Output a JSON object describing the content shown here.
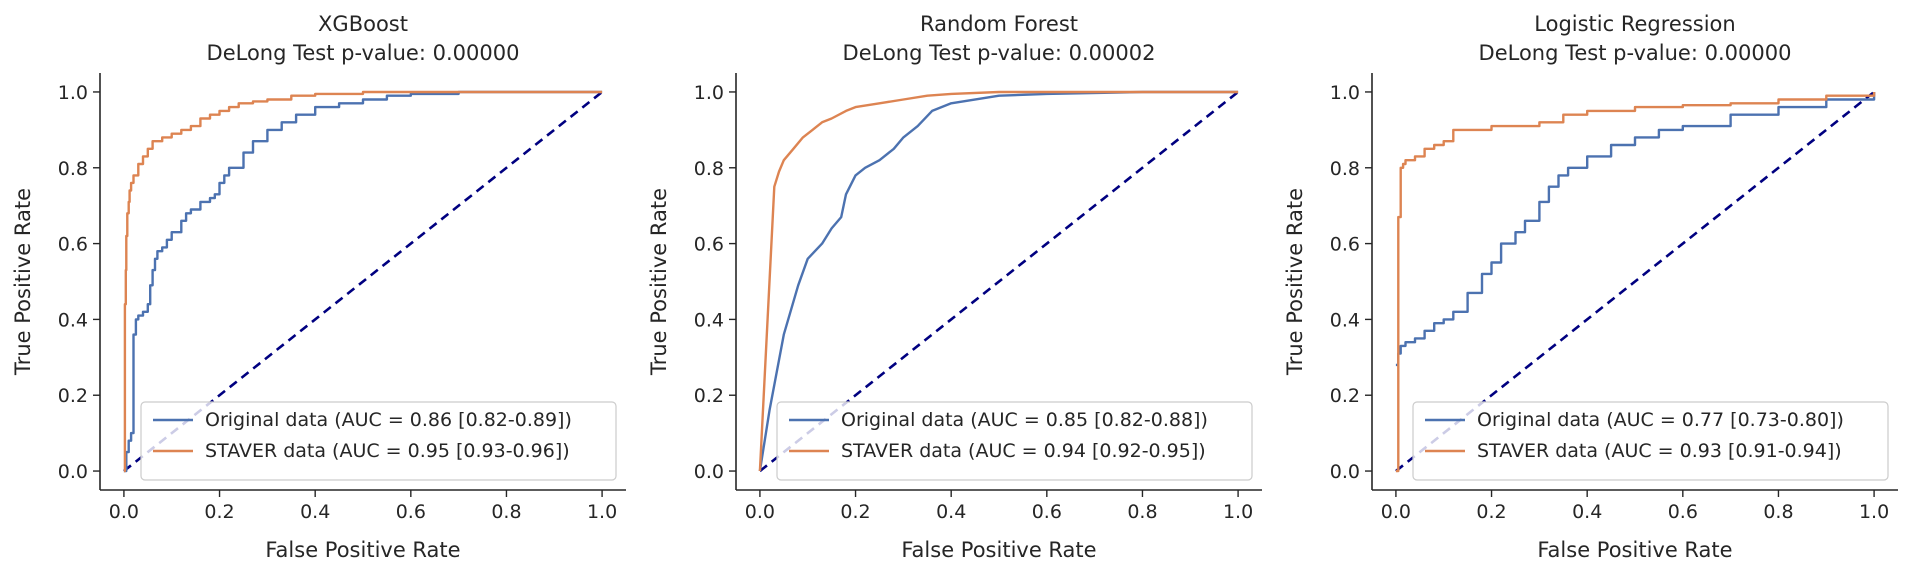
{
  "colors": {
    "original": "#4c72b0",
    "staver": "#dd8452",
    "diagonal": "#000080",
    "axes": "#262626",
    "legend_border": "#cccccc"
  },
  "chart_data": [
    {
      "type": "line",
      "title": "XGBoost",
      "subtitle": "DeLong Test p-value: 0.00000",
      "xlabel": "False Positive Rate",
      "ylabel": "True Positive Rate",
      "xlim": [
        -0.05,
        1.05
      ],
      "ylim": [
        -0.05,
        1.05
      ],
      "xticks": [
        "0.0",
        "0.2",
        "0.4",
        "0.6",
        "0.8",
        "1.0"
      ],
      "yticks": [
        "0.0",
        "0.2",
        "0.4",
        "0.6",
        "0.8",
        "1.0"
      ],
      "grid": false,
      "legend_position": "lower-right",
      "series": [
        {
          "name": "Original data (AUC = 0.86 [0.82-0.89])",
          "x": [
            0,
            0.005,
            0.01,
            0.015,
            0.02,
            0.02,
            0.025,
            0.025,
            0.03,
            0.04,
            0.05,
            0.055,
            0.06,
            0.065,
            0.07,
            0.08,
            0.09,
            0.1,
            0.12,
            0.13,
            0.14,
            0.16,
            0.18,
            0.19,
            0.2,
            0.21,
            0.22,
            0.25,
            0.27,
            0.3,
            0.33,
            0.36,
            0.4,
            0.45,
            0.5,
            0.55,
            0.6,
            0.7,
            0.8,
            1.0
          ],
          "y": [
            0,
            0.05,
            0.08,
            0.1,
            0.1,
            0.36,
            0.38,
            0.4,
            0.41,
            0.42,
            0.44,
            0.49,
            0.53,
            0.56,
            0.58,
            0.59,
            0.61,
            0.63,
            0.66,
            0.68,
            0.69,
            0.71,
            0.72,
            0.73,
            0.76,
            0.78,
            0.8,
            0.84,
            0.87,
            0.9,
            0.92,
            0.94,
            0.96,
            0.97,
            0.98,
            0.99,
            0.995,
            1.0,
            1.0,
            1.0
          ]
        },
        {
          "name": "STAVER data (AUC = 0.95 [0.93-0.96])",
          "x": [
            0,
            0.002,
            0.004,
            0.005,
            0.007,
            0.01,
            0.012,
            0.015,
            0.02,
            0.03,
            0.04,
            0.05,
            0.06,
            0.08,
            0.1,
            0.12,
            0.14,
            0.16,
            0.18,
            0.2,
            0.22,
            0.24,
            0.27,
            0.3,
            0.35,
            0.4,
            0.5,
            0.6,
            0.7,
            1.0
          ],
          "y": [
            0,
            0.44,
            0.53,
            0.62,
            0.68,
            0.71,
            0.74,
            0.76,
            0.78,
            0.81,
            0.83,
            0.85,
            0.87,
            0.88,
            0.89,
            0.9,
            0.91,
            0.93,
            0.94,
            0.95,
            0.96,
            0.97,
            0.975,
            0.98,
            0.99,
            0.995,
            1.0,
            1.0,
            1.0,
            1.0
          ]
        },
        {
          "x": [
            0,
            1
          ],
          "y": [
            0,
            1
          ]
        }
      ]
    },
    {
      "type": "line",
      "title": "Random Forest",
      "subtitle": "DeLong Test p-value: 0.00002",
      "xlabel": "False Positive Rate",
      "ylabel": "True Positive Rate",
      "xlim": [
        -0.05,
        1.05
      ],
      "ylim": [
        -0.05,
        1.05
      ],
      "xticks": [
        "0.0",
        "0.2",
        "0.4",
        "0.6",
        "0.8",
        "1.0"
      ],
      "yticks": [
        "0.0",
        "0.2",
        "0.4",
        "0.6",
        "0.8",
        "1.0"
      ],
      "grid": false,
      "legend_position": "lower-right",
      "series": [
        {
          "name": "Original data (AUC = 0.85 [0.82-0.88])",
          "x": [
            0,
            0.02,
            0.05,
            0.08,
            0.1,
            0.13,
            0.15,
            0.17,
            0.18,
            0.2,
            0.22,
            0.25,
            0.28,
            0.3,
            0.33,
            0.36,
            0.4,
            0.5,
            0.6,
            0.8,
            1.0
          ],
          "y": [
            0,
            0.16,
            0.36,
            0.49,
            0.56,
            0.6,
            0.64,
            0.67,
            0.73,
            0.78,
            0.8,
            0.82,
            0.85,
            0.88,
            0.91,
            0.95,
            0.97,
            0.99,
            0.995,
            1.0,
            1.0
          ],
          "smooth": true
        },
        {
          "name": "STAVER data (AUC = 0.94 [0.92-0.95])",
          "x": [
            0,
            0.03,
            0.04,
            0.05,
            0.07,
            0.09,
            0.11,
            0.13,
            0.15,
            0.18,
            0.2,
            0.25,
            0.3,
            0.35,
            0.4,
            0.5,
            0.6,
            0.8,
            1.0
          ],
          "y": [
            0,
            0.75,
            0.79,
            0.82,
            0.85,
            0.88,
            0.9,
            0.92,
            0.93,
            0.95,
            0.96,
            0.97,
            0.98,
            0.99,
            0.995,
            1.0,
            1.0,
            1.0,
            1.0
          ],
          "smooth": true
        },
        {
          "x": [
            0,
            1
          ],
          "y": [
            0,
            1
          ]
        }
      ]
    },
    {
      "type": "line",
      "title": "Logistic Regression",
      "subtitle": "DeLong Test p-value: 0.00000",
      "xlabel": "False Positive Rate",
      "ylabel": "True Positive Rate",
      "xlim": [
        -0.05,
        1.05
      ],
      "ylim": [
        -0.05,
        1.05
      ],
      "xticks": [
        "0.0",
        "0.2",
        "0.4",
        "0.6",
        "0.8",
        "1.0"
      ],
      "yticks": [
        "0.0",
        "0.2",
        "0.4",
        "0.6",
        "0.8",
        "1.0"
      ],
      "grid": false,
      "legend_position": "lower-right",
      "series": [
        {
          "name": "Original data (AUC = 0.77 [0.73-0.80])",
          "x": [
            0,
            0.005,
            0.01,
            0.02,
            0.04,
            0.06,
            0.08,
            0.1,
            0.12,
            0.15,
            0.18,
            0.2,
            0.22,
            0.25,
            0.27,
            0.3,
            0.32,
            0.34,
            0.36,
            0.4,
            0.45,
            0.5,
            0.55,
            0.6,
            0.7,
            0.8,
            0.9,
            1.0
          ],
          "y": [
            0.28,
            0.31,
            0.33,
            0.34,
            0.35,
            0.37,
            0.39,
            0.4,
            0.42,
            0.47,
            0.52,
            0.55,
            0.6,
            0.63,
            0.66,
            0.71,
            0.75,
            0.78,
            0.8,
            0.83,
            0.86,
            0.88,
            0.9,
            0.91,
            0.94,
            0.96,
            0.98,
            1.0
          ]
        },
        {
          "name": "STAVER data (AUC = 0.93 [0.91-0.94])",
          "x": [
            0,
            0.005,
            0.007,
            0.01,
            0.015,
            0.02,
            0.04,
            0.06,
            0.08,
            0.1,
            0.12,
            0.2,
            0.3,
            0.35,
            0.4,
            0.5,
            0.6,
            0.7,
            0.8,
            0.9,
            1.0
          ],
          "y": [
            0,
            0.67,
            0.67,
            0.8,
            0.81,
            0.82,
            0.83,
            0.85,
            0.86,
            0.87,
            0.9,
            0.91,
            0.92,
            0.94,
            0.95,
            0.96,
            0.965,
            0.97,
            0.98,
            0.99,
            1.0
          ]
        },
        {
          "x": [
            0,
            1
          ],
          "y": [
            0,
            1
          ]
        }
      ]
    }
  ]
}
